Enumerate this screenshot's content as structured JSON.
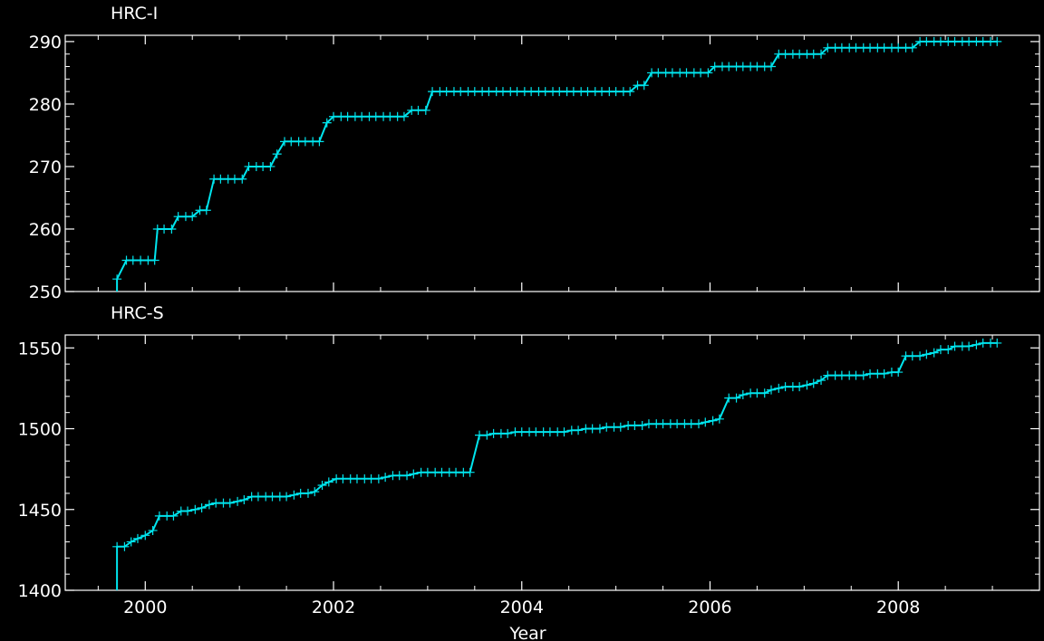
{
  "chart_data": [
    {
      "type": "line",
      "title": "HRC-I",
      "xlabel": "",
      "ylabel": "",
      "xlim": [
        1999.15,
        2009.5
      ],
      "ylim": [
        250,
        291
      ],
      "y_ticks": [
        250,
        260,
        270,
        280,
        290
      ],
      "x_ticks": [
        2000,
        2002,
        2004,
        2006,
        2008
      ],
      "x_tick_labels_shown": false,
      "grid": false,
      "colors": {
        "series": "#00e5ee",
        "axes": "#ffffff",
        "background": "#000000"
      },
      "series": [
        {
          "x": [
            1999.7,
            1999.8,
            1999.87,
            1999.95,
            2000.03,
            2000.1,
            2000.13,
            2000.2,
            2000.28,
            2000.35,
            2000.43,
            2000.5,
            2000.58,
            2000.65,
            2000.73,
            2000.8,
            2000.88,
            2000.95,
            2001.03,
            2001.1,
            2001.18,
            2001.25,
            2001.33,
            2001.4,
            2001.48,
            2001.55,
            2001.63,
            2001.7,
            2001.78,
            2001.85,
            2001.93,
            2002.0,
            2002.08,
            2002.15,
            2002.23,
            2002.3,
            2002.38,
            2002.45,
            2002.53,
            2002.6,
            2002.68,
            2002.75,
            2002.83,
            2002.9,
            2002.98,
            2003.05,
            2003.13,
            2003.2,
            2003.28,
            2003.35,
            2003.43,
            2003.5,
            2003.58,
            2003.65,
            2003.73,
            2003.8,
            2003.88,
            2003.95,
            2004.03,
            2004.1,
            2004.18,
            2004.25,
            2004.33,
            2004.4,
            2004.48,
            2004.55,
            2004.63,
            2004.7,
            2004.78,
            2004.85,
            2004.93,
            2005.0,
            2005.08,
            2005.15,
            2005.23,
            2005.3,
            2005.38,
            2005.45,
            2005.53,
            2005.6,
            2005.68,
            2005.75,
            2005.83,
            2005.9,
            2005.98,
            2006.05,
            2006.13,
            2006.2,
            2006.28,
            2006.35,
            2006.43,
            2006.5,
            2006.58,
            2006.65,
            2006.73,
            2006.8,
            2006.88,
            2006.95,
            2007.03,
            2007.1,
            2007.18,
            2007.25,
            2007.33,
            2007.4,
            2007.48,
            2007.55,
            2007.63,
            2007.7,
            2007.78,
            2007.85,
            2007.93,
            2008.0,
            2008.08,
            2008.15,
            2008.23,
            2008.3,
            2008.38,
            2008.45,
            2008.53,
            2008.6,
            2008.68,
            2008.75,
            2008.83,
            2008.9,
            2008.98,
            2009.05
          ],
          "y": [
            252,
            255,
            255,
            255,
            255,
            255,
            260,
            260,
            260,
            262,
            262,
            262,
            263,
            263,
            268,
            268,
            268,
            268,
            268,
            270,
            270,
            270,
            270,
            272,
            274,
            274,
            274,
            274,
            274,
            274,
            277,
            278,
            278,
            278,
            278,
            278,
            278,
            278,
            278,
            278,
            278,
            278,
            279,
            279,
            279,
            282,
            282,
            282,
            282,
            282,
            282,
            282,
            282,
            282,
            282,
            282,
            282,
            282,
            282,
            282,
            282,
            282,
            282,
            282,
            282,
            282,
            282,
            282,
            282,
            282,
            282,
            282,
            282,
            282,
            283,
            283,
            285,
            285,
            285,
            285,
            285,
            285,
            285,
            285,
            285,
            286,
            286,
            286,
            286,
            286,
            286,
            286,
            286,
            286,
            288,
            288,
            288,
            288,
            288,
            288,
            288,
            289,
            289,
            289,
            289,
            289,
            289,
            289,
            289,
            289,
            289,
            289,
            289,
            289,
            290,
            290,
            290,
            290,
            290,
            290,
            290,
            290,
            290,
            290,
            290,
            290
          ]
        }
      ]
    },
    {
      "type": "line",
      "title": "HRC-S",
      "xlabel": "Year",
      "ylabel": "",
      "xlim": [
        1999.15,
        2009.5
      ],
      "ylim": [
        1400,
        1558
      ],
      "y_ticks": [
        1400,
        1450,
        1500,
        1550
      ],
      "x_ticks": [
        2000,
        2002,
        2004,
        2006,
        2008
      ],
      "x_tick_labels": [
        "2000",
        "2002",
        "2004",
        "2006",
        "2008"
      ],
      "grid": false,
      "colors": {
        "series": "#00e5ee",
        "axes": "#ffffff",
        "background": "#000000"
      },
      "series": [
        {
          "x": [
            1999.7,
            1999.78,
            1999.85,
            1999.92,
            2000.0,
            2000.08,
            2000.15,
            2000.23,
            2000.3,
            2000.38,
            2000.45,
            2000.53,
            2000.6,
            2000.68,
            2000.75,
            2000.83,
            2000.9,
            2000.98,
            2001.05,
            2001.13,
            2001.2,
            2001.28,
            2001.35,
            2001.43,
            2001.5,
            2001.58,
            2001.65,
            2001.73,
            2001.8,
            2001.88,
            2001.95,
            2002.03,
            2002.1,
            2002.18,
            2002.25,
            2002.33,
            2002.4,
            2002.48,
            2002.55,
            2002.63,
            2002.7,
            2002.78,
            2002.85,
            2002.93,
            2003.0,
            2003.08,
            2003.15,
            2003.23,
            2003.3,
            2003.38,
            2003.45,
            2003.55,
            2003.63,
            2003.7,
            2003.78,
            2003.85,
            2003.93,
            2004.0,
            2004.08,
            2004.15,
            2004.23,
            2004.3,
            2004.38,
            2004.45,
            2004.53,
            2004.6,
            2004.68,
            2004.75,
            2004.83,
            2004.9,
            2004.98,
            2005.05,
            2005.13,
            2005.2,
            2005.28,
            2005.35,
            2005.43,
            2005.5,
            2005.58,
            2005.65,
            2005.73,
            2005.8,
            2005.88,
            2005.95,
            2006.03,
            2006.1,
            2006.2,
            2006.28,
            2006.35,
            2006.43,
            2006.5,
            2006.58,
            2006.65,
            2006.73,
            2006.8,
            2006.88,
            2006.95,
            2007.03,
            2007.1,
            2007.18,
            2007.25,
            2007.33,
            2007.4,
            2007.48,
            2007.55,
            2007.63,
            2007.7,
            2007.78,
            2007.85,
            2007.93,
            2008.0,
            2008.08,
            2008.15,
            2008.23,
            2008.3,
            2008.38,
            2008.45,
            2008.53,
            2008.6,
            2008.68,
            2008.75,
            2008.83,
            2008.9,
            2008.98,
            2009.05
          ],
          "y": [
            1427,
            1427,
            1430,
            1432,
            1434,
            1437,
            1446,
            1446,
            1446,
            1449,
            1449,
            1450,
            1451,
            1453,
            1454,
            1454,
            1454,
            1455,
            1456,
            1458,
            1458,
            1458,
            1458,
            1458,
            1458,
            1459,
            1460,
            1460,
            1461,
            1465,
            1467,
            1469,
            1469,
            1469,
            1469,
            1469,
            1469,
            1469,
            1470,
            1471,
            1471,
            1471,
            1472,
            1473,
            1473,
            1473,
            1473,
            1473,
            1473,
            1473,
            1473,
            1496,
            1496,
            1497,
            1497,
            1497,
            1498,
            1498,
            1498,
            1498,
            1498,
            1498,
            1498,
            1498,
            1499,
            1499,
            1500,
            1500,
            1500,
            1501,
            1501,
            1501,
            1502,
            1502,
            1502,
            1503,
            1503,
            1503,
            1503,
            1503,
            1503,
            1503,
            1503,
            1504,
            1505,
            1506,
            1519,
            1519,
            1521,
            1522,
            1522,
            1522,
            1524,
            1525,
            1526,
            1526,
            1526,
            1527,
            1528,
            1530,
            1533,
            1533,
            1533,
            1533,
            1533,
            1533,
            1534,
            1534,
            1534,
            1535,
            1535,
            1545,
            1545,
            1545,
            1546,
            1547,
            1549,
            1549,
            1551,
            1551,
            1551,
            1552,
            1553,
            1553,
            1553
          ]
        }
      ]
    }
  ]
}
